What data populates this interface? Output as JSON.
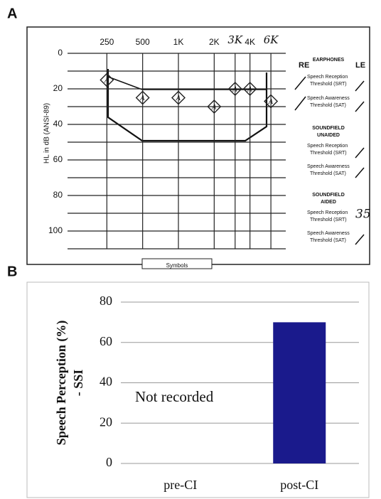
{
  "panel_labels": [
    "A",
    "B"
  ],
  "chart_data": [
    {
      "type": "scatter",
      "ylabel": "HL in dB (ANSI-89)",
      "x": [
        250,
        500,
        1000,
        2000,
        3000,
        4000,
        6000
      ],
      "values": [
        15,
        25,
        25,
        30,
        20,
        20,
        27
      ],
      "marker_label": "A",
      "color": "#222222",
      "xlog": true,
      "xlim": [
        125,
        8000
      ],
      "xticks": [
        250,
        500,
        {
          "value": 1000,
          "label": "1K"
        },
        {
          "value": 2000,
          "label": "2K"
        },
        {
          "value": 3000,
          "label": "3K"
        },
        {
          "value": 4000,
          "label": "4K"
        },
        {
          "value": 6000,
          "label": "6K"
        }
      ],
      "ylim": [
        0,
        110
      ],
      "yinverted": true,
      "yticks": [
        0,
        20,
        40,
        60,
        80,
        100
      ],
      "ygrid": [
        0,
        10,
        20,
        30,
        40,
        50,
        60,
        70,
        80,
        90,
        100,
        110
      ],
      "grid": true
    },
    {
      "type": "bar",
      "ylabel": [
        "Speech Perception (%)",
        "- SSI"
      ],
      "categories": [
        "pre-CI",
        "post-CI"
      ],
      "values": [
        null,
        70
      ],
      "color": "#1a1a8c",
      "ylim": [
        0,
        80
      ],
      "yticks": [
        0,
        20,
        40,
        60,
        80
      ],
      "grid": true,
      "annotation": "Not recorded"
    }
  ],
  "legend": {
    "right_ear": "RE",
    "left_ear": "LE",
    "earphones": "EARPHONES",
    "srt": [
      "Speech Reception",
      "Threshold (SRT)"
    ],
    "sat": [
      "Speech Awareness",
      "Threshold (SAT)"
    ],
    "unaided": [
      "SOUNDFIELD",
      "UNAIDED"
    ],
    "aided": [
      "SOUNDFIELD",
      "AIDED"
    ],
    "aided_srt": 35,
    "symbols": "Symbols"
  }
}
